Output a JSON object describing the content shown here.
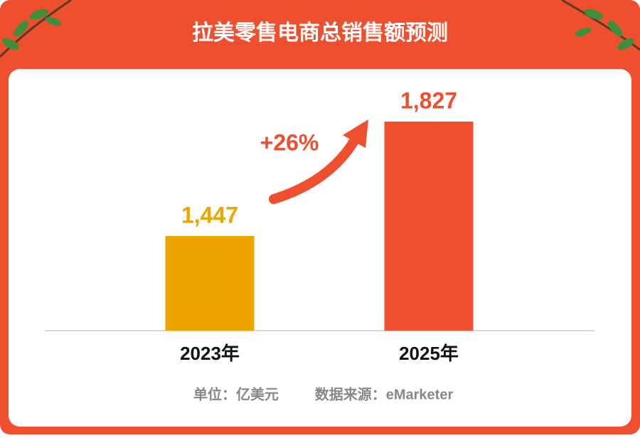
{
  "chart_data": {
    "type": "bar",
    "title": "拉美零售电商总销售额预测",
    "categories": [
      "2023年",
      "2025年"
    ],
    "values": [
      1447,
      1827
    ],
    "value_labels": [
      "1,447",
      "1,827"
    ],
    "colors": [
      "#eea400",
      "#ee4f2e"
    ],
    "ylim": [
      1133,
      1827
    ],
    "annotation": "+26%",
    "unit": "单位：亿美元",
    "source": "数据来源：eMarketer"
  }
}
